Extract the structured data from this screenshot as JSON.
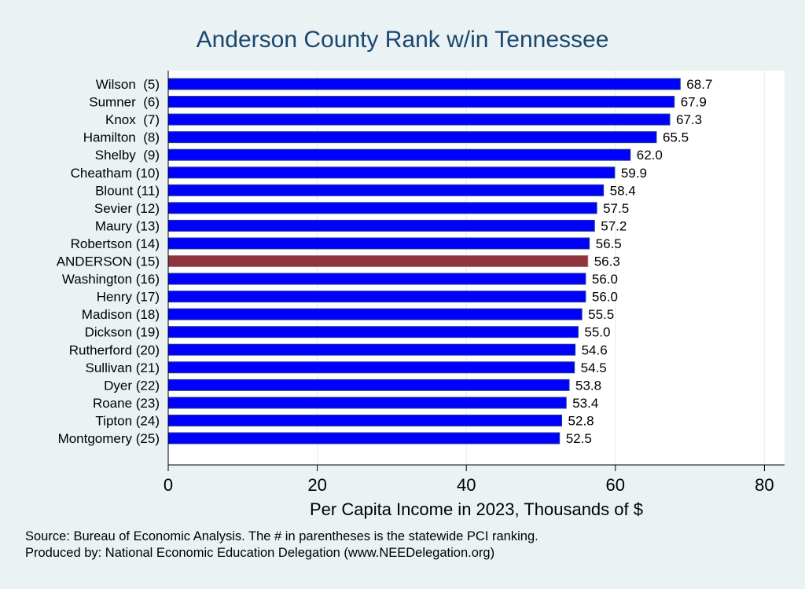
{
  "chart_data": {
    "type": "bar",
    "orientation": "horizontal",
    "title": "Anderson County Rank w/in Tennessee",
    "xlabel": "Per Capita Income in 2023, Thousands of $",
    "ylabel": "",
    "xlim": [
      0,
      82.5
    ],
    "xticks": [
      0,
      20,
      40,
      60,
      80
    ],
    "grid": true,
    "categories": [
      "Wilson  (5)",
      "Sumner  (6)",
      "Knox  (7)",
      "Hamilton  (8)",
      "Shelby  (9)",
      "Cheatham (10)",
      "Blount (11)",
      "Sevier (12)",
      "Maury (13)",
      "Robertson (14)",
      "ANDERSON (15)",
      "Washington (16)",
      "Henry (17)",
      "Madison (18)",
      "Dickson (19)",
      "Rutherford (20)",
      "Sullivan (21)",
      "Dyer (22)",
      "Roane (23)",
      "Tipton (24)",
      "Montgomery (25)"
    ],
    "values": [
      68.7,
      67.9,
      67.3,
      65.5,
      62.0,
      59.9,
      58.4,
      57.5,
      57.2,
      56.5,
      56.3,
      56.0,
      56.0,
      55.5,
      55.0,
      54.6,
      54.5,
      53.8,
      53.4,
      52.8,
      52.5
    ],
    "value_labels": [
      "68.7",
      "67.9",
      "67.3",
      "65.5",
      "62.0",
      "59.9",
      "58.4",
      "57.5",
      "57.2",
      "56.5",
      "56.3",
      "56.0",
      "56.0",
      "55.5",
      "55.0",
      "54.6",
      "54.5",
      "53.8",
      "53.4",
      "52.8",
      "52.5"
    ],
    "highlight_index": 10,
    "colors": {
      "bar": "#0000ff",
      "highlight": "#90353b",
      "background": "#eaf2f3",
      "title": "#1a476f"
    }
  },
  "notes": {
    "source": "Source: Bureau of Economic Analysis. The # in parentheses is the statewide PCI ranking.",
    "producer": "Produced by: National Economic Education Delegation (www.NEEDelegation.org)"
  }
}
